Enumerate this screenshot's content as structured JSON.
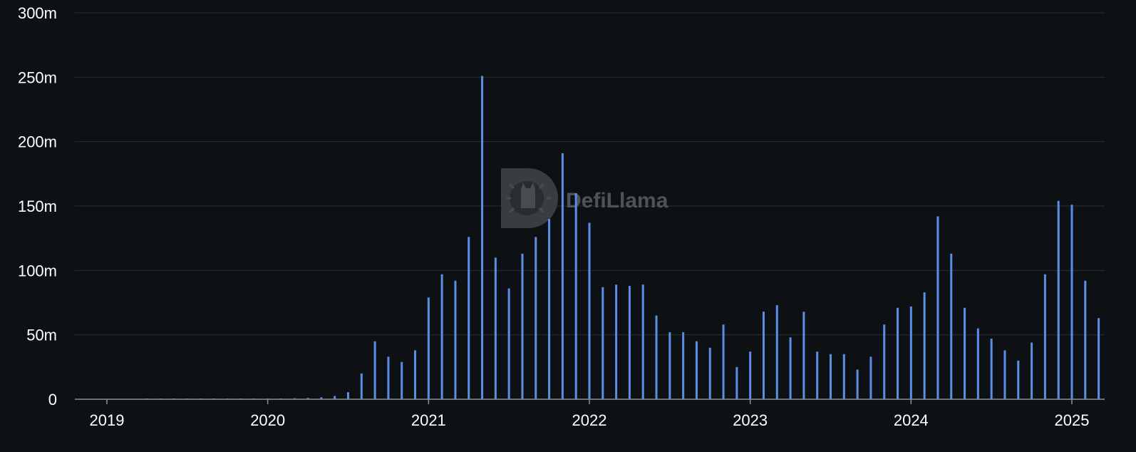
{
  "chart_data": {
    "type": "bar",
    "title": "",
    "xlabel": "",
    "ylabel": "",
    "ylim": [
      0,
      300000000
    ],
    "y_ticks": [
      0,
      50000000,
      100000000,
      150000000,
      200000000,
      250000000,
      300000000
    ],
    "y_tick_labels": [
      "0",
      "50m",
      "100m",
      "150m",
      "200m",
      "250m",
      "300m"
    ],
    "x_ticks": [
      "2019-01",
      "2020-01",
      "2021-01",
      "2022-01",
      "2023-01",
      "2024-01",
      "2025-01"
    ],
    "x_tick_labels": [
      "2019",
      "2020",
      "2021",
      "2022",
      "2023",
      "2024",
      "2025"
    ],
    "grid": true,
    "legend": "none",
    "bar_color": "#5b8ee6",
    "background": "#0e1114",
    "categories": [
      "2019-01",
      "2019-02",
      "2019-03",
      "2019-04",
      "2019-05",
      "2019-06",
      "2019-07",
      "2019-08",
      "2019-09",
      "2019-10",
      "2019-11",
      "2019-12",
      "2020-01",
      "2020-02",
      "2020-03",
      "2020-04",
      "2020-05",
      "2020-06",
      "2020-07",
      "2020-08",
      "2020-09",
      "2020-10",
      "2020-11",
      "2020-12",
      "2021-01",
      "2021-02",
      "2021-03",
      "2021-04",
      "2021-05",
      "2021-06",
      "2021-07",
      "2021-08",
      "2021-09",
      "2021-10",
      "2021-11",
      "2021-12",
      "2022-01",
      "2022-02",
      "2022-03",
      "2022-04",
      "2022-05",
      "2022-06",
      "2022-07",
      "2022-08",
      "2022-09",
      "2022-10",
      "2022-11",
      "2022-12",
      "2023-01",
      "2023-02",
      "2023-03",
      "2023-04",
      "2023-05",
      "2023-06",
      "2023-07",
      "2023-08",
      "2023-09",
      "2023-10",
      "2023-11",
      "2023-12",
      "2024-01",
      "2024-02",
      "2024-03",
      "2024-04",
      "2024-05",
      "2024-06",
      "2024-07",
      "2024-08",
      "2024-09",
      "2024-10",
      "2024-11",
      "2024-12",
      "2025-01",
      "2025-02",
      "2025-03"
    ],
    "values": [
      0,
      0,
      0,
      100000,
      150000,
      200000,
      200000,
      200000,
      200000,
      200000,
      200000,
      200000,
      300000,
      500000,
      800000,
      1000000,
      1500000,
      2500000,
      5500000,
      20000000,
      45000000,
      33000000,
      29000000,
      38000000,
      79000000,
      97000000,
      92000000,
      126000000,
      251000000,
      110000000,
      86000000,
      113000000,
      126000000,
      140000000,
      191000000,
      160000000,
      137000000,
      87000000,
      89000000,
      88000000,
      89000000,
      65000000,
      52000000,
      52000000,
      45000000,
      40000000,
      58000000,
      25000000,
      37000000,
      68000000,
      73000000,
      48000000,
      68000000,
      37000000,
      35000000,
      35000000,
      23000000,
      33000000,
      58000000,
      71000000,
      72000000,
      83000000,
      142000000,
      113000000,
      71000000,
      55000000,
      47000000,
      38000000,
      30000000,
      44000000,
      97000000,
      154000000,
      151000000,
      92000000,
      63000000
    ]
  },
  "watermark": {
    "text": "DefiLlama",
    "icon": "llama-logo-icon"
  }
}
